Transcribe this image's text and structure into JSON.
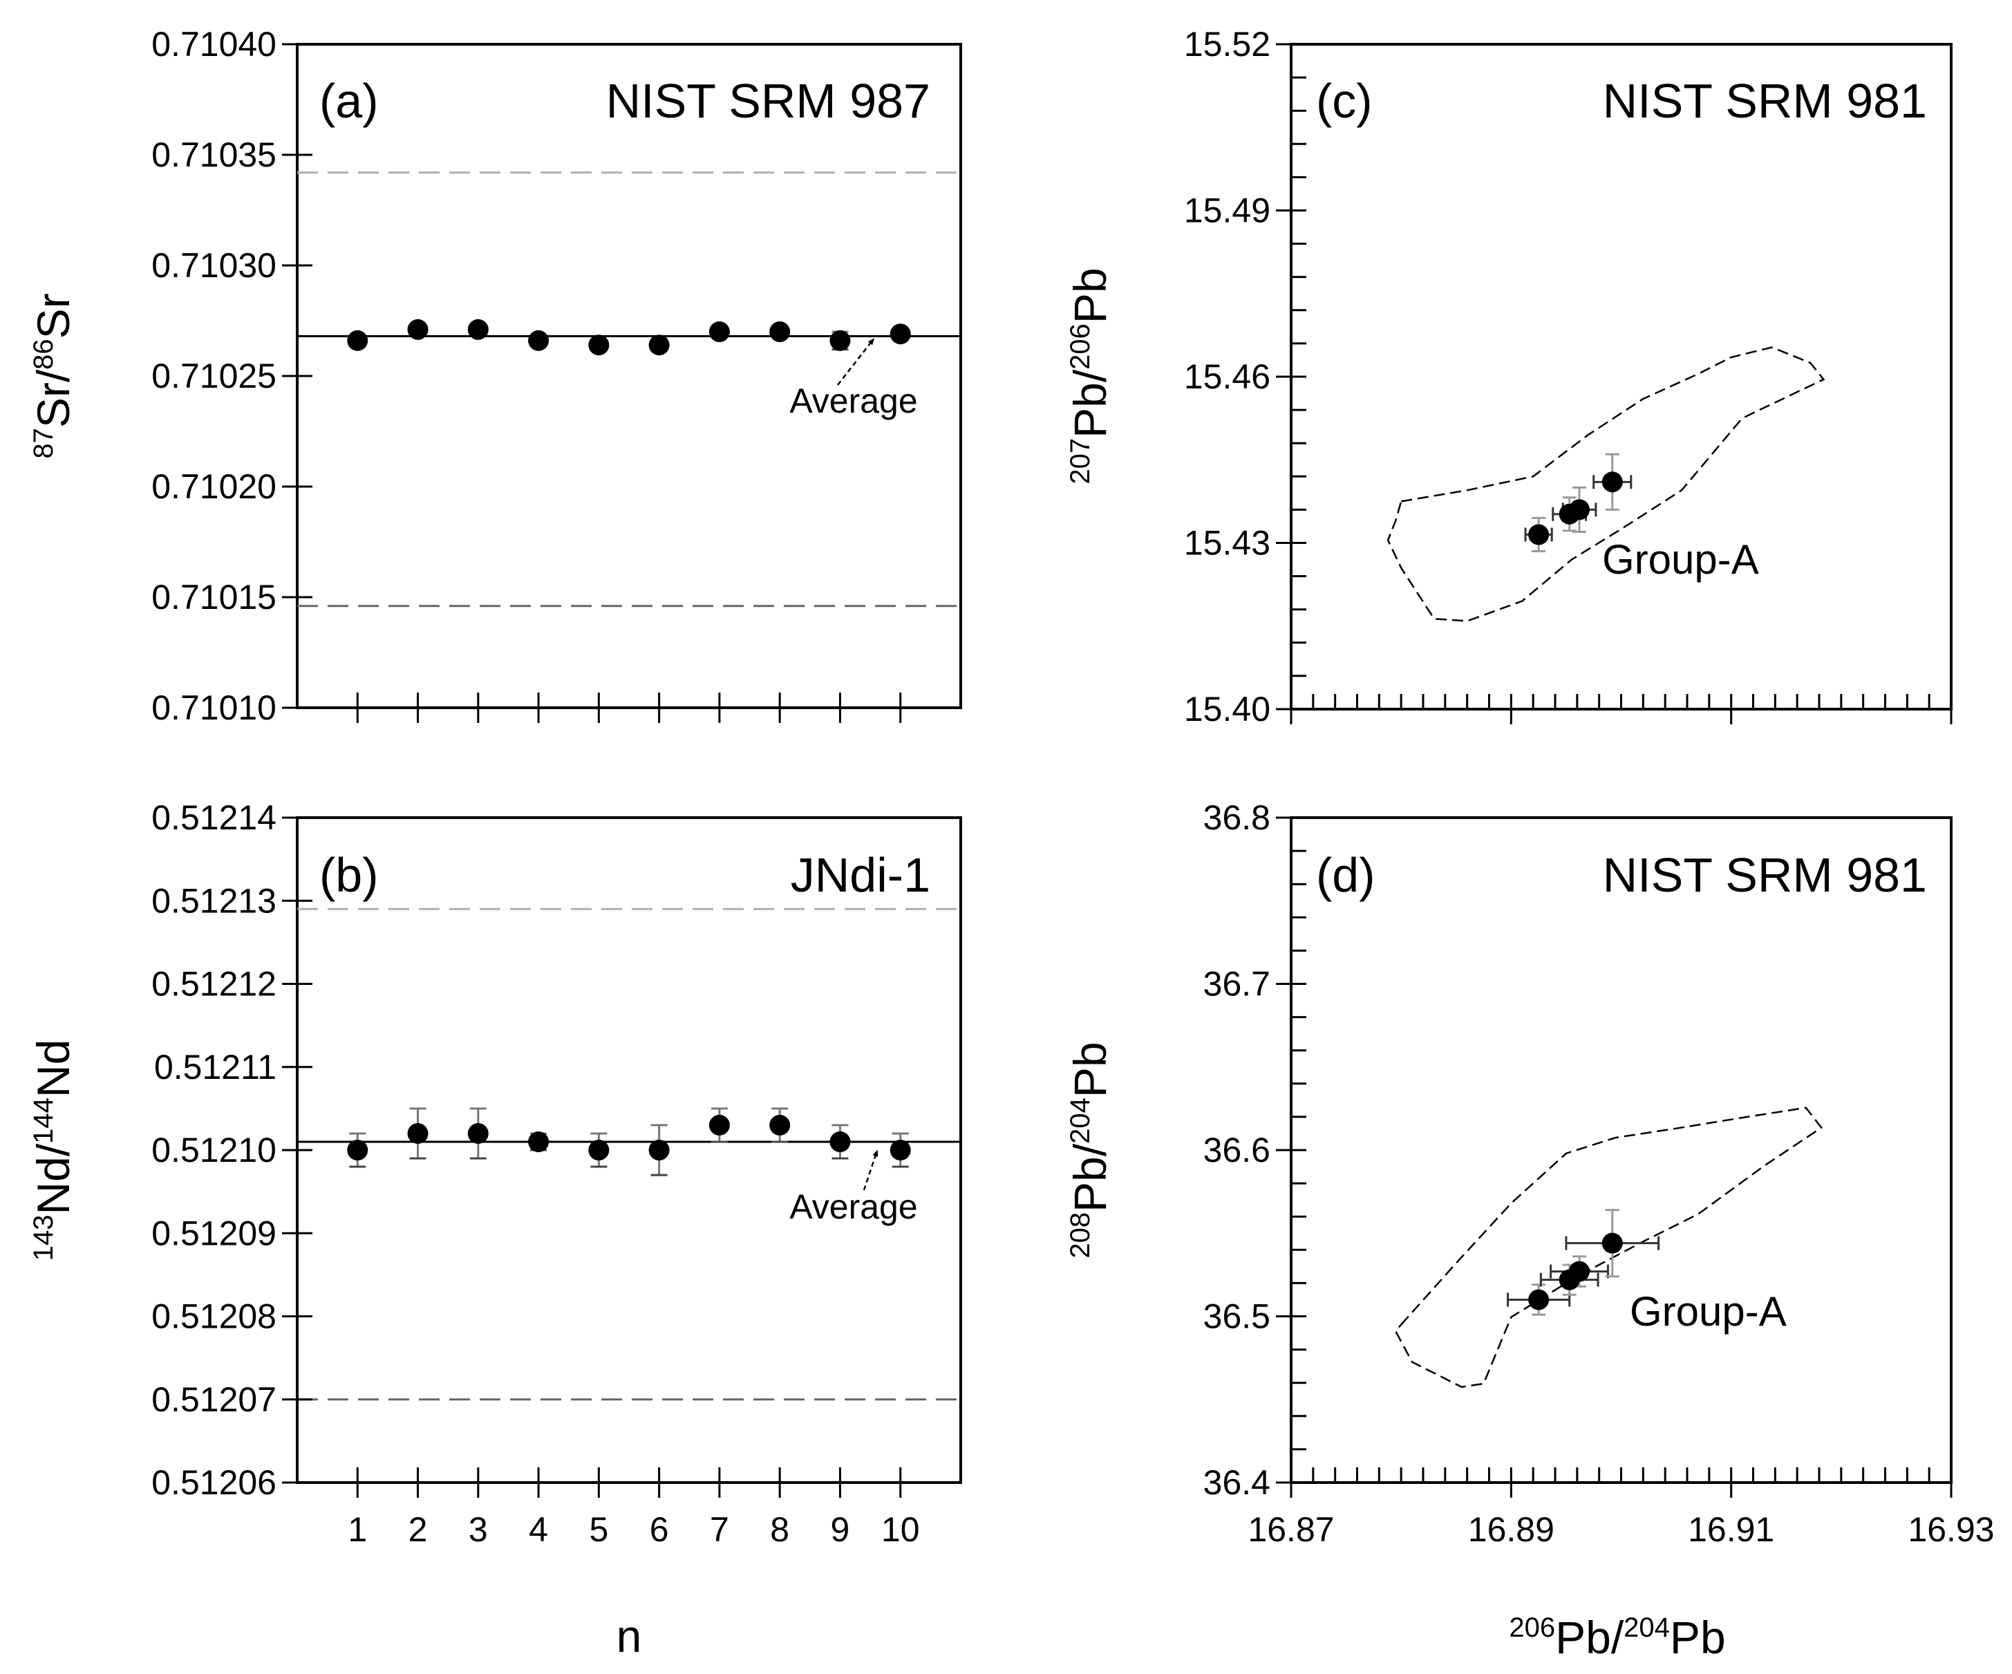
{
  "chart_data": [
    {
      "id": "a",
      "type": "scatter",
      "panel_label": "(a)",
      "standard": "NIST SRM 987",
      "xlabel": "",
      "ylabel": {
        "sup1": "87",
        "base1": "Sr/",
        "sup2": "86",
        "base2": "Sr"
      },
      "x": [
        1,
        2,
        3,
        4,
        5,
        6,
        7,
        8,
        9,
        10
      ],
      "y": [
        0.710266,
        0.710271,
        0.710271,
        0.710266,
        0.710264,
        0.710264,
        0.71027,
        0.71027,
        0.710266,
        0.710269
      ],
      "y_err": [
        2e-06,
        1e-06,
        1e-06,
        1e-06,
        1e-06,
        1e-06,
        1e-06,
        1e-06,
        4e-06,
        1e-06
      ],
      "average": 0.710268,
      "average_label": "Average",
      "limits": [
        0.710342,
        0.710146
      ],
      "xlim": [
        0,
        11
      ],
      "ylim": [
        0.7101,
        0.7104
      ],
      "x_tick_values": [
        1,
        2,
        3,
        4,
        5,
        6,
        7,
        8,
        9,
        10
      ],
      "y_tick_values": [
        0.7101,
        0.71015,
        0.7102,
        0.71025,
        0.7103,
        0.71035,
        0.7104
      ],
      "y_tick_labels": [
        "0.71010",
        "0.71015",
        "0.71020",
        "0.71025",
        "0.71030",
        "0.71035",
        "0.71040"
      ]
    },
    {
      "id": "b",
      "type": "scatter",
      "panel_label": "(b)",
      "standard": "JNdi-1",
      "xlabel": "n",
      "ylabel": {
        "sup1": "143",
        "base1": "Nd/",
        "sup2": "144",
        "base2": "Nd"
      },
      "x": [
        1,
        2,
        3,
        4,
        5,
        6,
        7,
        8,
        9,
        10
      ],
      "y": [
        0.5121,
        0.512102,
        0.512102,
        0.512101,
        0.5121,
        0.5121,
        0.512103,
        0.512103,
        0.512101,
        0.5121
      ],
      "y_err": [
        2e-06,
        3e-06,
        3e-06,
        1e-06,
        2e-06,
        3e-06,
        2e-06,
        2e-06,
        2e-06,
        2e-06
      ],
      "average": 0.512101,
      "average_label": "Average",
      "limits": [
        0.512129,
        0.51207
      ],
      "xlim": [
        0,
        11
      ],
      "ylim": [
        0.51206,
        0.51214
      ],
      "x_tick_values": [
        1,
        2,
        3,
        4,
        5,
        6,
        7,
        8,
        9,
        10
      ],
      "x_tick_labels": [
        "1",
        "2",
        "3",
        "4",
        "5",
        "6",
        "7",
        "8",
        "9",
        "10"
      ],
      "y_tick_values": [
        0.51206,
        0.51207,
        0.51208,
        0.51209,
        0.5121,
        0.51211,
        0.51212,
        0.51213,
        0.51214
      ],
      "y_tick_labels": [
        "0.51206",
        "0.51207",
        "0.51208",
        "0.51209",
        "0.51210",
        "0.51211",
        "0.51212",
        "0.51213",
        "0.51214"
      ]
    },
    {
      "id": "c",
      "type": "scatter",
      "panel_label": "(c)",
      "standard": "NIST SRM 981",
      "group_label": "Group-A",
      "ylabel": {
        "sup1": "207",
        "base1": "Pb/",
        "sup2": "206",
        "base2": "Pb"
      },
      "points": [
        {
          "x": 16.8925,
          "y": 15.4315,
          "xerr": 0.0012,
          "yerr": 0.003
        },
        {
          "x": 16.8953,
          "y": 15.4352,
          "xerr": 0.0015,
          "yerr": 0.003
        },
        {
          "x": 16.8962,
          "y": 15.436,
          "xerr": 0.0015,
          "yerr": 0.004
        },
        {
          "x": 16.8992,
          "y": 15.441,
          "xerr": 0.0017,
          "yerr": 0.005
        }
      ],
      "envelope": [
        [
          16.88,
          15.4375
        ],
        [
          16.886,
          15.4395
        ],
        [
          16.892,
          15.442
        ],
        [
          16.897,
          15.4495
        ],
        [
          16.902,
          15.456
        ],
        [
          16.907,
          15.4605
        ],
        [
          16.91,
          15.4635
        ],
        [
          16.9137,
          15.4653
        ],
        [
          16.9172,
          15.4625
        ],
        [
          16.9184,
          15.4595
        ],
        [
          16.911,
          15.4525
        ],
        [
          16.9055,
          15.4395
        ],
        [
          16.9,
          15.4325
        ],
        [
          16.8955,
          15.427
        ],
        [
          16.891,
          15.4195
        ],
        [
          16.886,
          15.4159
        ],
        [
          16.883,
          15.4163
        ],
        [
          16.88,
          15.4255
        ],
        [
          16.8788,
          15.4305
        ],
        [
          16.8795,
          15.434
        ],
        [
          16.88,
          15.4375
        ]
      ],
      "xlim": [
        16.87,
        16.93
      ],
      "ylim": [
        15.4,
        15.52
      ],
      "y_tick_values": [
        15.4,
        15.43,
        15.46,
        15.49,
        15.52
      ],
      "y_tick_labels": [
        "15.40",
        "15.43",
        "15.46",
        "15.49",
        "15.52"
      ]
    },
    {
      "id": "d",
      "type": "scatter",
      "panel_label": "(d)",
      "standard": "NIST SRM 981",
      "group_label": "Group-A",
      "xlabel": {
        "sup1": "206",
        "base1": "Pb/",
        "sup2": "204",
        "base2": "Pb"
      },
      "ylabel": {
        "sup1": "208",
        "base1": "Pb/",
        "sup2": "204",
        "base2": "Pb"
      },
      "points": [
        {
          "x": 16.8925,
          "y": 36.51,
          "xerr": 0.0028,
          "yerr": 0.009
        },
        {
          "x": 16.8953,
          "y": 36.522,
          "xerr": 0.0026,
          "yerr": 0.009
        },
        {
          "x": 16.8962,
          "y": 36.527,
          "xerr": 0.0026,
          "yerr": 0.009
        },
        {
          "x": 16.8992,
          "y": 36.544,
          "xerr": 0.0042,
          "yerr": 0.02
        }
      ],
      "envelope": [
        [
          16.88,
          36.495
        ],
        [
          16.885,
          36.532
        ],
        [
          16.89,
          36.568
        ],
        [
          16.895,
          36.598
        ],
        [
          16.8995,
          36.6075
        ],
        [
          16.905,
          36.613
        ],
        [
          16.911,
          36.6195
        ],
        [
          16.9168,
          36.6255
        ],
        [
          16.9182,
          36.6135
        ],
        [
          16.913,
          36.5905
        ],
        [
          16.907,
          36.5615
        ],
        [
          16.902,
          36.545
        ],
        [
          16.896,
          36.524
        ],
        [
          16.89,
          36.4995
        ],
        [
          16.8875,
          36.4595
        ],
        [
          16.8855,
          36.4575
        ],
        [
          16.881,
          36.4725
        ],
        [
          16.8795,
          36.491
        ],
        [
          16.88,
          36.495
        ]
      ],
      "xlim": [
        16.87,
        16.93
      ],
      "ylim": [
        36.4,
        36.8
      ],
      "x_tick_values": [
        16.87,
        16.89,
        16.91,
        16.93
      ],
      "x_tick_labels": [
        "16.87",
        "16.89",
        "16.91",
        "16.93"
      ],
      "y_tick_values": [
        36.4,
        36.5,
        36.6,
        36.7,
        36.8
      ],
      "y_tick_labels": [
        "36.4",
        "36.5",
        "36.6",
        "36.7",
        "36.8"
      ]
    }
  ]
}
